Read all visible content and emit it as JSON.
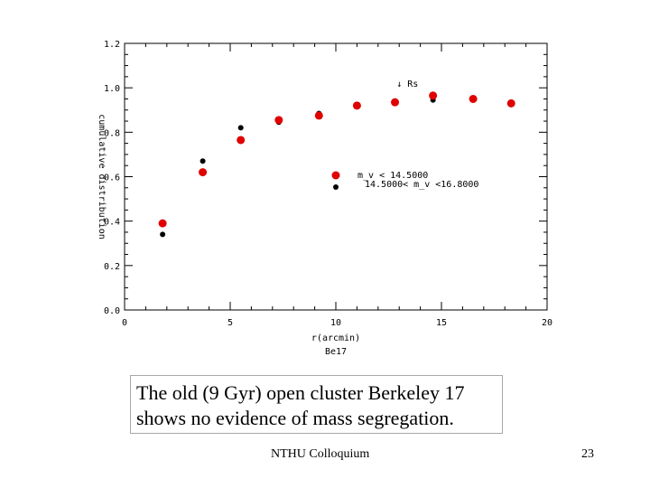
{
  "chart_data": {
    "type": "scatter",
    "xlabel": "r(arcmin)",
    "ylabel": "cumulative distribution",
    "subtitle": "Be17",
    "xlim": [
      0,
      20
    ],
    "ylim": [
      0,
      1.2
    ],
    "x_ticks": [
      "0",
      "5",
      "10",
      "15",
      "20"
    ],
    "y_ticks": [
      "0.0",
      "0.2",
      "0.4",
      "0.6",
      "0.8",
      "1.0",
      "1.2"
    ],
    "grid": false,
    "legend_position": "right-center",
    "annotation": "↓ Rs",
    "annotation_x": 13.0,
    "series": [
      {
        "name": "m_v < 14.5000",
        "color": "#e00000",
        "x": [
          1.8,
          3.7,
          5.5,
          7.3,
          9.2,
          11.0,
          12.8,
          14.6,
          16.5,
          18.3
        ],
        "y": [
          0.39,
          0.62,
          0.765,
          0.855,
          0.875,
          0.92,
          0.935,
          0.965,
          0.95,
          0.93
        ]
      },
      {
        "name": "14.5000< m_v <16.8000",
        "color": "#000000",
        "x": [
          1.8,
          3.7,
          5.5,
          7.3,
          9.2,
          11.0,
          12.8,
          14.6,
          16.5,
          18.3
        ],
        "y": [
          0.34,
          0.67,
          0.82,
          0.845,
          0.885,
          0.92,
          0.935,
          0.945,
          0.95,
          0.93
        ]
      }
    ]
  },
  "caption": {
    "line1": "The old (9 Gyr) open cluster Berkeley 17",
    "line2": "shows no evidence of  mass segregation."
  },
  "footer": "NTHU Colloquium",
  "page_number": "23"
}
